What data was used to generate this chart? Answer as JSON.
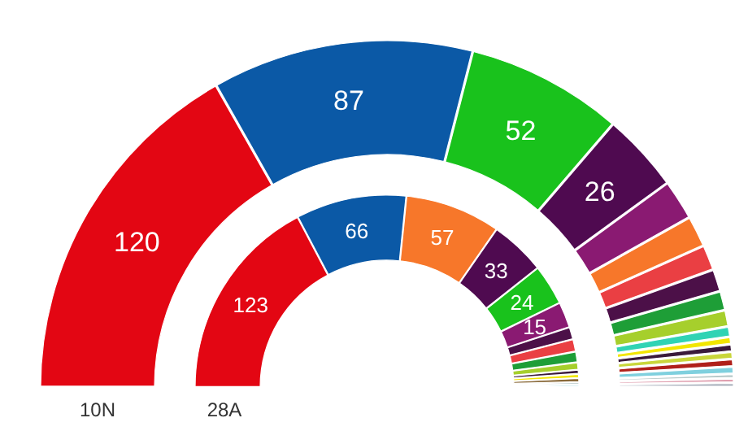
{
  "chart_data": [
    {
      "type": "donut",
      "title": "10N",
      "categories": [
        null,
        null,
        null,
        null,
        null,
        null,
        null,
        null,
        null,
        null,
        null,
        null,
        null,
        null,
        null,
        null,
        null,
        null,
        null
      ],
      "values": [
        120,
        87,
        52,
        26,
        13,
        10,
        8,
        7,
        6,
        5,
        3,
        2,
        2,
        2,
        2,
        2,
        1,
        1,
        1
      ],
      "colors": [
        "#e30613",
        "#0b59a6",
        "#19c21c",
        "#4f0a50",
        "#8a1a72",
        "#f7772a",
        "#ea3f43",
        "#4c1048",
        "#1e9e37",
        "#a6cf2c",
        "#30d3b4",
        "#f2e600",
        "#3a1a3a",
        "#c9d63a",
        "#b0201a",
        "#7fd0de",
        "#b7c9c9",
        "#e0a0b0",
        "#9aa3b0"
      ],
      "value_labels": [
        "120",
        "87",
        "52",
        "26",
        null,
        null,
        null,
        null,
        null,
        null,
        null,
        null,
        null,
        null,
        null,
        null,
        null,
        null,
        null
      ]
    },
    {
      "type": "donut",
      "title": "28A",
      "categories": [
        null,
        null,
        null,
        null,
        null,
        null,
        null,
        null,
        null,
        null,
        null,
        null,
        null,
        null,
        null
      ],
      "values": [
        123,
        66,
        57,
        33,
        24,
        15,
        7,
        7,
        6,
        4,
        2,
        2,
        2,
        1,
        1
      ],
      "colors": [
        "#e30613",
        "#0b59a6",
        "#f7772a",
        "#4f0a50",
        "#19c21c",
        "#8a1a72",
        "#4c1048",
        "#ea3f43",
        "#1e9e37",
        "#a6cf2c",
        "#3a1a3a",
        "#f2e600",
        "#8a6a3a",
        "#b7c9c9",
        "#7fd0de"
      ],
      "value_labels": [
        "123",
        "66",
        "57",
        "33",
        "24",
        "15",
        null,
        null,
        null,
        null,
        null,
        null,
        null,
        null,
        null
      ]
    }
  ]
}
